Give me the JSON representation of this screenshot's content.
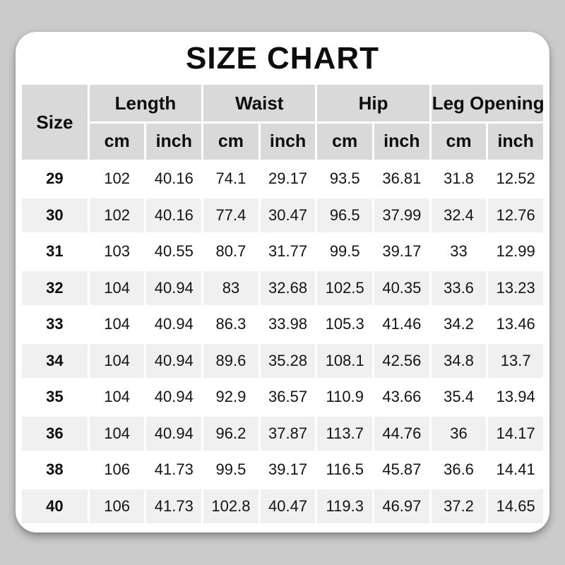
{
  "title": "SIZE CHART",
  "table": {
    "size_label": "Size",
    "groups": [
      {
        "label": "Length",
        "units": [
          "cm",
          "inch"
        ]
      },
      {
        "label": "Waist",
        "units": [
          "cm",
          "inch"
        ]
      },
      {
        "label": "Hip",
        "units": [
          "cm",
          "inch"
        ]
      },
      {
        "label": "Leg Opening",
        "units": [
          "cm",
          "inch"
        ]
      }
    ]
  },
  "chart_data": {
    "type": "table",
    "title": "SIZE CHART",
    "columns": [
      "Size",
      "Length cm",
      "Length inch",
      "Waist cm",
      "Waist inch",
      "Hip cm",
      "Hip inch",
      "Leg Opening cm",
      "Leg Opening inch"
    ],
    "rows": [
      [
        "29",
        "102",
        "40.16",
        "74.1",
        "29.17",
        "93.5",
        "36.81",
        "31.8",
        "12.52"
      ],
      [
        "30",
        "102",
        "40.16",
        "77.4",
        "30.47",
        "96.5",
        "37.99",
        "32.4",
        "12.76"
      ],
      [
        "31",
        "103",
        "40.55",
        "80.7",
        "31.77",
        "99.5",
        "39.17",
        "33",
        "12.99"
      ],
      [
        "32",
        "104",
        "40.94",
        "83",
        "32.68",
        "102.5",
        "40.35",
        "33.6",
        "13.23"
      ],
      [
        "33",
        "104",
        "40.94",
        "86.3",
        "33.98",
        "105.3",
        "41.46",
        "34.2",
        "13.46"
      ],
      [
        "34",
        "104",
        "40.94",
        "89.6",
        "35.28",
        "108.1",
        "42.56",
        "34.8",
        "13.7"
      ],
      [
        "35",
        "104",
        "40.94",
        "92.9",
        "36.57",
        "110.9",
        "43.66",
        "35.4",
        "13.94"
      ],
      [
        "36",
        "104",
        "40.94",
        "96.2",
        "37.87",
        "113.7",
        "44.76",
        "36",
        "14.17"
      ],
      [
        "38",
        "106",
        "41.73",
        "99.5",
        "39.17",
        "116.5",
        "45.87",
        "36.6",
        "14.41"
      ],
      [
        "40",
        "106",
        "41.73",
        "102.8",
        "40.47",
        "119.3",
        "46.97",
        "37.2",
        "14.65"
      ]
    ]
  },
  "colors": {
    "page_bg": "#cbcbcb",
    "card_bg": "#ffffff",
    "header_bg": "#d9d9d9",
    "row_alt_bg": "#f0f0f0",
    "text": "#141414"
  }
}
